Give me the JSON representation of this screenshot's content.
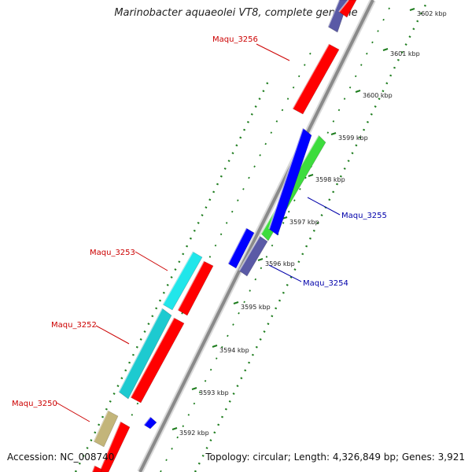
{
  "title": "Marinobacter aquaeolei VT8, complete genome",
  "footer": {
    "accession": "Accession: NC_008740",
    "summary": "Topology: circular; Length: 4,326,849 bp; Genes: 3,921"
  },
  "colors": {
    "backbone": "#8a8a8a",
    "tick_marks": "#1e7d1e",
    "forward_label": "#cc0000",
    "reverse_label": "#0000aa"
  },
  "scale_ticks": [
    {
      "label": "3592 kbp"
    },
    {
      "label": "3593 kbp"
    },
    {
      "label": "3594 kbp"
    },
    {
      "label": "3595 kbp"
    },
    {
      "label": "3596 kbp"
    },
    {
      "label": "3597 kbp"
    },
    {
      "label": "3598 kbp"
    },
    {
      "label": "3599 kbp"
    },
    {
      "label": "3600 kbp"
    },
    {
      "label": "3601 kbp"
    },
    {
      "label": "3602 kbp"
    }
  ],
  "gene_labels": [
    {
      "text": "Maqu_3256",
      "strand": "forward"
    },
    {
      "text": "Maqu_3255",
      "strand": "reverse"
    },
    {
      "text": "Maqu_3254",
      "strand": "reverse"
    },
    {
      "text": "Maqu_3253",
      "strand": "forward"
    },
    {
      "text": "Maqu_3252",
      "strand": "forward"
    },
    {
      "text": "Maqu_3250",
      "strand": "forward"
    }
  ],
  "features": [
    {
      "name": "Maqu_3256",
      "color": "#ff0000"
    },
    {
      "name": "Maqu_3255",
      "color": "#3ddc3d"
    },
    {
      "name": "Maqu_3254",
      "color": "#5a5aa6"
    },
    {
      "name": "Maqu_3253",
      "color": "#21e6ea"
    },
    {
      "name": "Maqu_3252",
      "color": "#1dcad0"
    },
    {
      "name": "Maqu_3250",
      "color": "#c3b57a"
    },
    {
      "name": "",
      "color": "#0000ff"
    },
    {
      "name": "",
      "color": "#ff0000"
    },
    {
      "name": "",
      "color": "#ff0000"
    },
    {
      "name": "",
      "color": "#0000ff"
    },
    {
      "name": "",
      "color": "#0000ff"
    },
    {
      "name": "",
      "color": "#5a5aa6"
    },
    {
      "name": "",
      "color": "#ff0000"
    },
    {
      "name": "",
      "color": "#ff0000"
    },
    {
      "name": "",
      "color": "#ff0000"
    }
  ]
}
